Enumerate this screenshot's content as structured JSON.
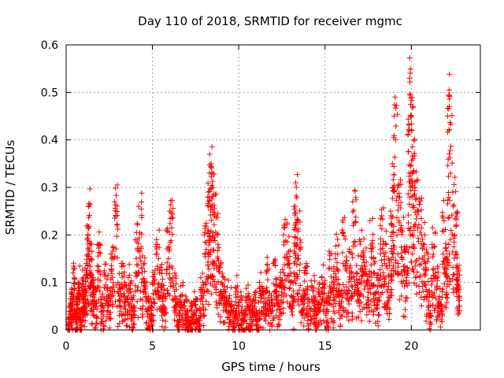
{
  "chart_data": {
    "type": "scatter",
    "title": "Day 110 of 2018, SRMTID for receiver mgmc",
    "xlabel": "GPS time / hours",
    "ylabel": "SRMTID / TECUs",
    "xlim": [
      0,
      24
    ],
    "ylim": [
      0,
      0.6
    ],
    "xticks": [
      0,
      5,
      10,
      15,
      20
    ],
    "yticks": [
      0,
      0.1,
      0.2,
      0.3,
      0.4,
      0.5,
      0.6
    ],
    "xtick_labels": [
      "0",
      "5",
      "10",
      "15",
      "20"
    ],
    "ytick_labels": [
      "0",
      "0.1",
      "0.2",
      "0.3",
      "0.4",
      "0.5",
      "0.6"
    ],
    "grid": true,
    "marker": "+",
    "color": "#ff0000",
    "series": [
      {
        "name": "SRMTID",
        "x": [
          0.1,
          0.2,
          0.3,
          0.4,
          0.5,
          0.6,
          0.7,
          0.8,
          0.9,
          1.0,
          1.1,
          1.2,
          1.3,
          1.4,
          1.5,
          1.6,
          1.8,
          2.0,
          2.2,
          2.4,
          2.6,
          2.8,
          3.0,
          3.2,
          3.4,
          3.6,
          3.8,
          4.0,
          4.2,
          4.4,
          4.6,
          4.8,
          5.0,
          5.2,
          5.4,
          5.6,
          5.8,
          6.0,
          6.2,
          6.4,
          6.6,
          6.8,
          7.0,
          7.2,
          7.4,
          7.6,
          7.8,
          8.0,
          8.2,
          8.3,
          8.4,
          8.5,
          8.6,
          8.8,
          9.0,
          9.2,
          9.4,
          9.6,
          9.8,
          10.0,
          10.2,
          10.4,
          10.6,
          10.8,
          11.0,
          11.2,
          11.4,
          11.6,
          11.8,
          12.0,
          12.2,
          12.4,
          12.6,
          12.8,
          13.0,
          13.2,
          13.3,
          13.4,
          13.6,
          13.8,
          14.0,
          14.2,
          14.4,
          14.6,
          14.8,
          15.0,
          15.2,
          15.4,
          15.6,
          15.8,
          16.0,
          16.2,
          16.4,
          16.6,
          16.8,
          17.0,
          17.2,
          17.4,
          17.6,
          17.8,
          18.0,
          18.2,
          18.4,
          18.6,
          18.8,
          18.9,
          19.0,
          19.2,
          19.4,
          19.6,
          19.8,
          19.9,
          20.0,
          20.1,
          20.2,
          20.4,
          20.6,
          20.8,
          21.0,
          21.2,
          21.4,
          21.6,
          21.8,
          22.0,
          22.1,
          22.2,
          22.4,
          22.6,
          22.7
        ],
        "y": [
          0.0,
          0.05,
          0.08,
          0.12,
          0.04,
          0.06,
          0.1,
          0.02,
          0.09,
          0.07,
          0.13,
          0.22,
          0.26,
          0.15,
          0.11,
          0.08,
          0.18,
          0.05,
          0.12,
          0.09,
          0.16,
          0.27,
          0.1,
          0.14,
          0.07,
          0.11,
          0.05,
          0.19,
          0.26,
          0.13,
          0.08,
          0.04,
          0.1,
          0.18,
          0.12,
          0.06,
          0.21,
          0.25,
          0.09,
          0.03,
          0.07,
          0.05,
          0.01,
          0.04,
          0.06,
          0.02,
          0.11,
          0.2,
          0.28,
          0.33,
          0.35,
          0.3,
          0.24,
          0.15,
          0.1,
          0.08,
          0.06,
          0.04,
          0.09,
          0.05,
          0.02,
          0.07,
          0.04,
          0.06,
          0.03,
          0.1,
          0.08,
          0.12,
          0.05,
          0.14,
          0.09,
          0.11,
          0.2,
          0.16,
          0.1,
          0.26,
          0.31,
          0.23,
          0.07,
          0.12,
          0.05,
          0.09,
          0.04,
          0.08,
          0.11,
          0.06,
          0.13,
          0.1,
          0.16,
          0.08,
          0.21,
          0.14,
          0.17,
          0.27,
          0.12,
          0.19,
          0.16,
          0.1,
          0.23,
          0.15,
          0.11,
          0.22,
          0.18,
          0.13,
          0.25,
          0.35,
          0.45,
          0.3,
          0.22,
          0.17,
          0.41,
          0.53,
          0.45,
          0.36,
          0.3,
          0.25,
          0.2,
          0.14,
          0.08,
          0.18,
          0.12,
          0.06,
          0.24,
          0.15,
          0.45,
          0.47,
          0.29,
          0.22,
          0.13
        ]
      }
    ]
  }
}
